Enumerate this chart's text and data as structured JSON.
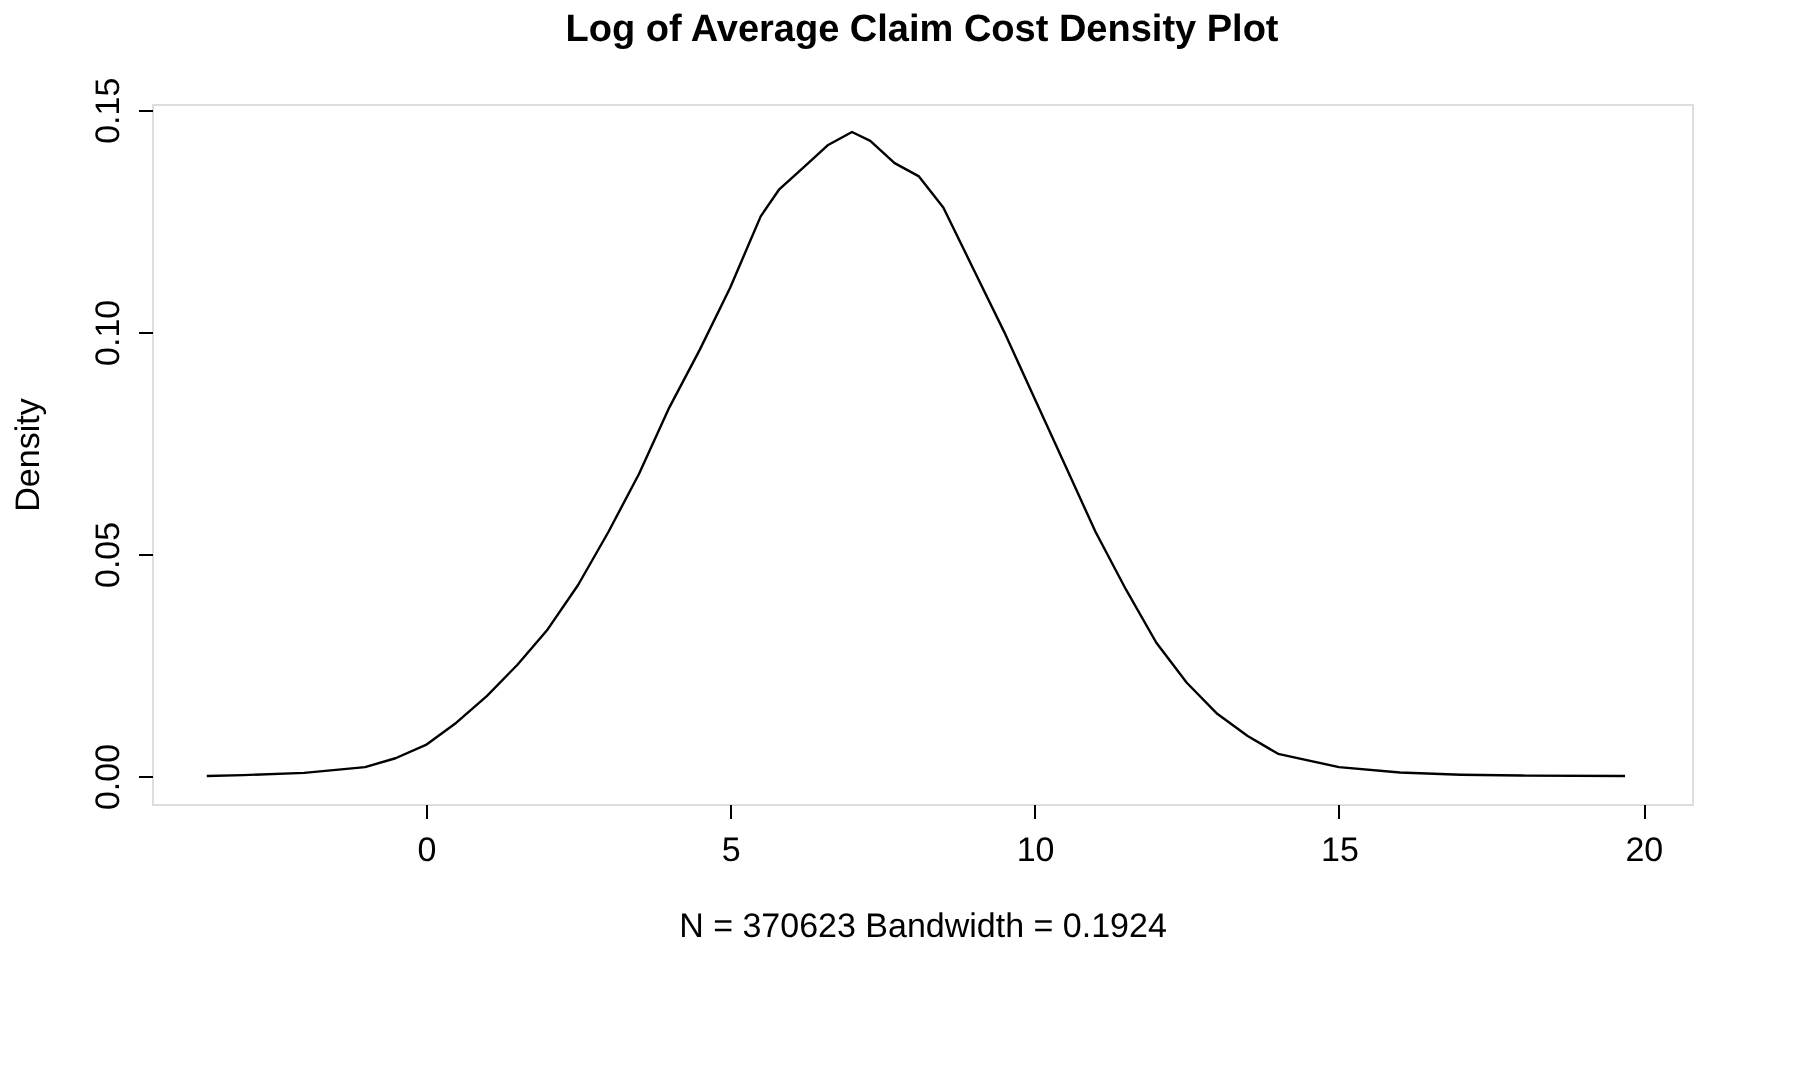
{
  "chart_data": {
    "type": "line",
    "title": "Log of Average Claim Cost Density Plot",
    "xlabel": "N = 370623   Bandwidth = 0.1924",
    "ylabel": "Density",
    "x": [
      -3.6,
      -3,
      -2,
      -1,
      -0.5,
      0,
      0.5,
      1,
      1.5,
      2,
      2.5,
      3,
      3.5,
      4,
      4.5,
      5,
      5.5,
      5.8,
      6.2,
      6.6,
      7,
      7.3,
      7.7,
      8.1,
      8.5,
      9,
      9.5,
      10,
      10.5,
      11,
      11.5,
      12,
      12.5,
      13,
      13.5,
      14,
      15,
      16,
      17,
      18,
      19.7
    ],
    "series": [
      {
        "color": "#000000",
        "values": [
          0.0,
          0.0002,
          0.0007,
          0.002,
          0.004,
          0.007,
          0.012,
          0.018,
          0.025,
          0.033,
          0.043,
          0.055,
          0.068,
          0.083,
          0.096,
          0.11,
          0.126,
          0.132,
          0.137,
          0.142,
          0.145,
          0.143,
          0.138,
          0.135,
          0.128,
          0.114,
          0.1,
          0.085,
          0.07,
          0.055,
          0.042,
          0.03,
          0.021,
          0.014,
          0.009,
          0.005,
          0.002,
          0.0008,
          0.0003,
          0.0001,
          0.0
        ]
      }
    ],
    "xlim": [
      -4.5,
      20.8
    ],
    "ylim": [
      -0.0063,
      0.1513
    ],
    "xticks": [
      0,
      5,
      10,
      15,
      20
    ],
    "yticks": [
      {
        "value": 0,
        "label": "0.00"
      },
      {
        "value": 0.05,
        "label": "0.05"
      },
      {
        "value": 0.1,
        "label": "0.10"
      },
      {
        "value": 0.15,
        "label": "0.15"
      }
    ],
    "grid": false,
    "legend": false,
    "marker": "none",
    "line_style": "solid"
  }
}
